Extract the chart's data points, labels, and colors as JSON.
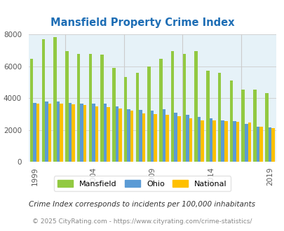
{
  "title": "Mansfield Property Crime Index",
  "years": [
    1999,
    2000,
    2001,
    2002,
    2003,
    2004,
    2005,
    2006,
    2007,
    2008,
    2009,
    2010,
    2011,
    2012,
    2013,
    2014,
    2015,
    2016,
    2017,
    2018,
    2019
  ],
  "mansfield": [
    6500,
    7700,
    7850,
    6950,
    6800,
    6800,
    6750,
    5900,
    5350,
    5600,
    6000,
    6500,
    6950,
    6800,
    6950,
    5750,
    5600,
    5100,
    4550,
    4550,
    4300
  ],
  "ohio": [
    3700,
    3800,
    3800,
    3700,
    3650,
    3650,
    3650,
    3500,
    3300,
    3250,
    3200,
    3300,
    3100,
    2950,
    2800,
    2750,
    2600,
    2550,
    2400,
    2200,
    2150
  ],
  "national": [
    3650,
    3650,
    3650,
    3600,
    3550,
    3500,
    3450,
    3350,
    3200,
    3050,
    3000,
    2950,
    2850,
    2750,
    2600,
    2600,
    2550,
    2500,
    2450,
    2200,
    2100
  ],
  "mansfield_color": "#92c941",
  "ohio_color": "#5b9bd5",
  "national_color": "#ffc000",
  "bg_color": "#e6f2f8",
  "title_color": "#1e6eb5",
  "ylim": [
    0,
    8000
  ],
  "yticks": [
    0,
    2000,
    4000,
    6000,
    8000
  ],
  "xtick_labels": [
    "1999",
    "2004",
    "2009",
    "2014",
    "2019"
  ],
  "xtick_positions": [
    1999,
    2004,
    2009,
    2014,
    2019
  ],
  "footnote1": "Crime Index corresponds to incidents per 100,000 inhabitants",
  "footnote2": "© 2025 CityRating.com - https://www.cityrating.com/crime-statistics/",
  "legend_labels": [
    "Mansfield",
    "Ohio",
    "National"
  ],
  "bar_width": 0.27,
  "grid_color": "#cccccc",
  "vline_x": [
    2001.58,
    2006.58,
    2011.58,
    2016.58
  ]
}
